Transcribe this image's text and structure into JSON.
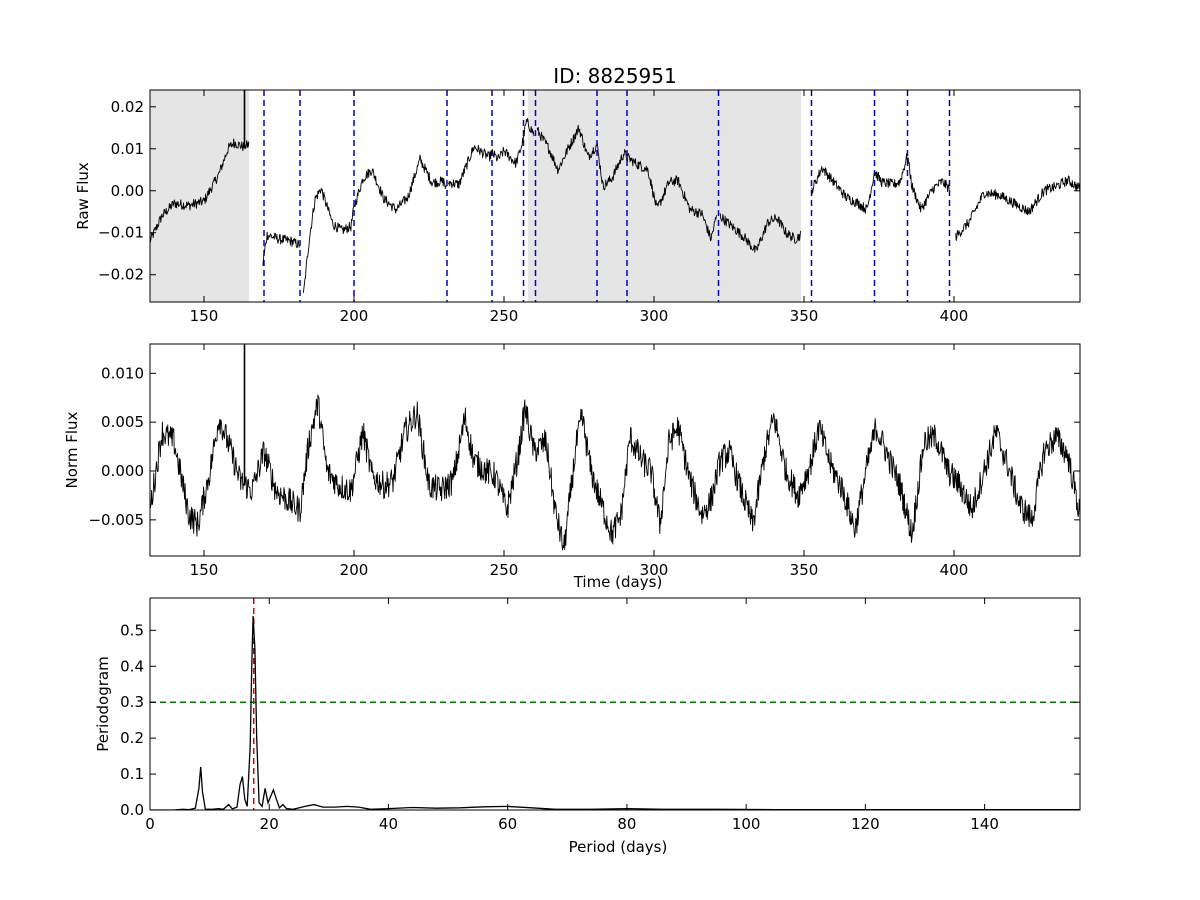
{
  "figure_title": "ID: 8825951",
  "chart_data": [
    {
      "type": "line",
      "panel": "raw",
      "ylabel": "Raw Flux",
      "xlabel": "",
      "xlim": [
        132,
        442
      ],
      "ylim": [
        -0.0265,
        0.024
      ],
      "xticks": [
        150,
        200,
        250,
        300,
        350,
        400
      ],
      "yticks": [
        -0.02,
        -0.01,
        0.0,
        0.01,
        0.02
      ],
      "ytick_labels": [
        "−0.02",
        "−0.01",
        "0.00",
        "0.01",
        "0.02"
      ],
      "shaded_spans": [
        [
          132,
          165
        ],
        [
          258,
          349
        ]
      ],
      "vlines": {
        "color": "#0000cc",
        "style": "dashed",
        "x": [
          170,
          182,
          200,
          231,
          246,
          256.5,
          260.5,
          281,
          291,
          321.5,
          352.5,
          373.5,
          384.5,
          398.5
        ]
      },
      "spike": {
        "x": 163.5,
        "y_from": 0.0115,
        "y_to": 0.024
      },
      "series": [
        {
          "points": [
            [
              132,
              -0.012
            ],
            [
              136,
              -0.006
            ],
            [
              140,
              -0.003
            ],
            [
              145,
              -0.0035
            ],
            [
              150,
              -0.0025
            ],
            [
              155,
              0.004
            ],
            [
              158,
              0.01
            ],
            [
              160,
              0.0115
            ],
            [
              163,
              0.0105
            ],
            [
              165,
              0.011
            ],
            [
              169.5,
              -0.018
            ],
            [
              171,
              -0.0105
            ],
            [
              175,
              -0.0115
            ],
            [
              179,
              -0.012
            ],
            [
              182,
              -0.013
            ],
            [
              183,
              -0.026
            ],
            [
              185,
              -0.012
            ],
            [
              187,
              -0.002
            ],
            [
              189,
              0.0005
            ],
            [
              193,
              -0.008
            ],
            [
              196,
              -0.0095
            ],
            [
              199,
              -0.0085
            ],
            [
              200,
              -0.004
            ],
            [
              203,
              0.003
            ],
            [
              206,
              0.005
            ],
            [
              210,
              -0.002
            ],
            [
              214,
              -0.0045
            ],
            [
              218,
              -0.0015
            ],
            [
              222,
              0.0075
            ],
            [
              226,
              0.002
            ],
            [
              230,
              0.0022
            ],
            [
              231,
              -0.0005
            ],
            [
              231.5,
              0.002
            ],
            [
              235,
              0.0015
            ],
            [
              240,
              0.0105
            ],
            [
              245,
              0.008
            ],
            [
              246,
              0.009
            ],
            [
              248,
              0.0075
            ],
            [
              250,
              0.0095
            ],
            [
              254,
              0.0065
            ],
            [
              256,
              0.011
            ],
            [
              257.5,
              0.0165
            ],
            [
              260,
              0.0135
            ],
            [
              261,
              0.0145
            ],
            [
              265,
              0.01
            ],
            [
              268,
              0.005
            ],
            [
              271,
              0.0095
            ],
            [
              275,
              0.015
            ],
            [
              278,
              0.008
            ],
            [
              281,
              0.011
            ],
            [
              283,
              0.001
            ],
            [
              286,
              0.003
            ],
            [
              290,
              0.009
            ],
            [
              291,
              0.008
            ],
            [
              294,
              0.0065
            ],
            [
              298,
              0.005
            ],
            [
              301,
              -0.0045
            ],
            [
              305,
              0.002
            ],
            [
              308,
              0.0025
            ],
            [
              312,
              -0.0045
            ],
            [
              316,
              -0.0055
            ],
            [
              319,
              -0.0115
            ],
            [
              321,
              -0.0055
            ],
            [
              322,
              -0.006
            ],
            [
              326,
              -0.0085
            ],
            [
              330,
              -0.011
            ],
            [
              334,
              -0.0145
            ],
            [
              338,
              -0.0075
            ],
            [
              341,
              -0.0065
            ],
            [
              344,
              -0.01
            ],
            [
              347,
              -0.0115
            ],
            [
              349,
              -0.0105
            ],
            [
              352.5,
              0.0
            ],
            [
              356,
              0.0055
            ],
            [
              360,
              0.002
            ],
            [
              364,
              -0.0015
            ],
            [
              368,
              -0.003
            ],
            [
              371,
              -0.0045
            ],
            [
              373.5,
              0.0045
            ],
            [
              376,
              0.002
            ],
            [
              380,
              0.0015
            ],
            [
              382,
              0.0022
            ],
            [
              384.5,
              0.0085
            ],
            [
              386,
              0.001
            ],
            [
              389,
              -0.0045
            ],
            [
              393,
              0.0005
            ],
            [
              396,
              0.0022
            ],
            [
              398.5,
              0.0005
            ],
            [
              400.5,
              -0.011
            ],
            [
              405,
              -0.0075
            ],
            [
              410,
              -0.0005
            ],
            [
              415,
              -0.001
            ],
            [
              420,
              -0.003
            ],
            [
              425,
              -0.005
            ],
            [
              430,
              0.0
            ],
            [
              434,
              0.001
            ],
            [
              438,
              0.0025
            ],
            [
              442,
              0.0005
            ]
          ],
          "gaps_after_x": [
            165,
            182,
            231,
            260,
            321,
            349,
            398.5
          ]
        }
      ]
    },
    {
      "type": "line",
      "panel": "norm",
      "ylabel": "Norm Flux",
      "xlabel": "Time (days)",
      "xlim": [
        132,
        442
      ],
      "ylim": [
        -0.0087,
        0.013
      ],
      "xticks": [
        150,
        200,
        250,
        300,
        350,
        400
      ],
      "yticks": [
        -0.005,
        0.0,
        0.005,
        0.01
      ],
      "ytick_labels": [
        "−0.005",
        "0.000",
        "0.005",
        "0.010"
      ],
      "spike": {
        "x": 163.5,
        "y_from": -0.0015,
        "y_to": 0.013
      },
      "series": [
        {
          "points": [
            [
              132,
              -0.004
            ],
            [
              136,
              0.004
            ],
            [
              140,
              0.003
            ],
            [
              145,
              -0.0045
            ],
            [
              148,
              -0.0055
            ],
            [
              152,
              0.0
            ],
            [
              155,
              0.0055
            ],
            [
              159,
              0.002
            ],
            [
              162,
              -0.001
            ],
            [
              166,
              -0.002
            ],
            [
              170,
              0.002
            ],
            [
              174,
              -0.002
            ],
            [
              178,
              -0.003
            ],
            [
              182,
              -0.004
            ],
            [
              185,
              0.003
            ],
            [
              188,
              0.007
            ],
            [
              191,
              0.0
            ],
            [
              195,
              -0.0015
            ],
            [
              199,
              -0.002
            ],
            [
              203,
              0.004
            ],
            [
              206,
              -0.0005
            ],
            [
              210,
              -0.0015
            ],
            [
              213,
              -0.001
            ],
            [
              217,
              0.004
            ],
            [
              221,
              0.006
            ],
            [
              225,
              -0.0015
            ],
            [
              229,
              -0.002
            ],
            [
              233,
              -0.001
            ],
            [
              237,
              0.0055
            ],
            [
              240,
              0.001
            ],
            [
              244,
              0.0
            ],
            [
              247,
              -0.0005
            ],
            [
              251,
              -0.004
            ],
            [
              255,
              0.002
            ],
            [
              257,
              0.0065
            ],
            [
              260,
              0.002
            ],
            [
              264,
              0.003
            ],
            [
              267,
              -0.004
            ],
            [
              270,
              -0.008
            ],
            [
              274,
              0.0025
            ],
            [
              276,
              0.0055
            ],
            [
              279,
              0.0
            ],
            [
              282,
              -0.003
            ],
            [
              286,
              -0.0065
            ],
            [
              289,
              -0.0045
            ],
            [
              292,
              0.0035
            ],
            [
              296,
              0.001
            ],
            [
              299,
              0.0
            ],
            [
              302,
              -0.0055
            ],
            [
              305,
              0.003
            ],
            [
              308,
              0.0045
            ],
            [
              312,
              -0.001
            ],
            [
              316,
              -0.0045
            ],
            [
              319,
              -0.003
            ],
            [
              322,
              0.001
            ],
            [
              325,
              0.002
            ],
            [
              329,
              -0.002
            ],
            [
              333,
              -0.0055
            ],
            [
              337,
              0.002
            ],
            [
              340,
              0.0055
            ],
            [
              344,
              0.0
            ],
            [
              348,
              -0.0025
            ],
            [
              352,
              0.0005
            ],
            [
              355,
              0.0045
            ],
            [
              359,
              0.0005
            ],
            [
              363,
              -0.002
            ],
            [
              367,
              -0.006
            ],
            [
              371,
              0.0005
            ],
            [
              374,
              0.0045
            ],
            [
              378,
              0.0015
            ],
            [
              382,
              -0.0015
            ],
            [
              386,
              -0.0065
            ],
            [
              390,
              0.003
            ],
            [
              394,
              0.0035
            ],
            [
              398,
              0.0
            ],
            [
              402,
              -0.0015
            ],
            [
              406,
              -0.004
            ],
            [
              410,
              0.0
            ],
            [
              414,
              0.004
            ],
            [
              418,
              0.0005
            ],
            [
              422,
              -0.0035
            ],
            [
              426,
              -0.005
            ],
            [
              430,
              0.002
            ],
            [
              434,
              0.0035
            ],
            [
              438,
              0.0015
            ],
            [
              442,
              -0.0045
            ]
          ]
        }
      ]
    },
    {
      "type": "line",
      "panel": "periodogram",
      "ylabel": "Periodogram",
      "xlabel": "Period (days)",
      "xlim": [
        0,
        156
      ],
      "ylim": [
        0,
        0.59
      ],
      "xticks": [
        0,
        20,
        40,
        60,
        80,
        100,
        120,
        140
      ],
      "yticks": [
        0.0,
        0.1,
        0.2,
        0.3,
        0.4,
        0.5
      ],
      "ytick_labels": [
        "0.0",
        "0.1",
        "0.2",
        "0.3",
        "0.4",
        "0.5"
      ],
      "hline": {
        "y": 0.3,
        "color": "#007700",
        "style": "dashed"
      },
      "vline": {
        "x": 17.4,
        "color": "#dd0000",
        "style": "dashed"
      },
      "series": [
        {
          "points": [
            [
              0,
              0
            ],
            [
              4,
              0
            ],
            [
              5.5,
              0.002
            ],
            [
              6.5,
              0.001
            ],
            [
              7.6,
              0.005
            ],
            [
              8.2,
              0.06
            ],
            [
              8.5,
              0.12
            ],
            [
              8.8,
              0.05
            ],
            [
              9.3,
              0.002
            ],
            [
              10.5,
              0.002
            ],
            [
              11.5,
              0.004
            ],
            [
              12.3,
              0.002
            ],
            [
              13.2,
              0.015
            ],
            [
              13.8,
              0.003
            ],
            [
              14.6,
              0.008
            ],
            [
              15.1,
              0.07
            ],
            [
              15.5,
              0.093
            ],
            [
              15.9,
              0.03
            ],
            [
              16.3,
              0.01
            ],
            [
              16.8,
              0.18
            ],
            [
              17.1,
              0.42
            ],
            [
              17.3,
              0.54
            ],
            [
              17.6,
              0.45
            ],
            [
              17.9,
              0.2
            ],
            [
              18.3,
              0.02
            ],
            [
              18.8,
              0.01
            ],
            [
              19.3,
              0.06
            ],
            [
              19.8,
              0.02
            ],
            [
              20.3,
              0.04
            ],
            [
              20.7,
              0.056
            ],
            [
              21.2,
              0.03
            ],
            [
              21.7,
              0.006
            ],
            [
              22.3,
              0.015
            ],
            [
              22.9,
              0.004
            ],
            [
              24,
              0.002
            ],
            [
              26,
              0.01
            ],
            [
              27.5,
              0.015
            ],
            [
              29,
              0.008
            ],
            [
              31,
              0.008
            ],
            [
              33,
              0.01
            ],
            [
              35,
              0.008
            ],
            [
              37,
              0.002
            ],
            [
              40,
              0.004
            ],
            [
              44,
              0.007
            ],
            [
              48,
              0.005
            ],
            [
              52,
              0.006
            ],
            [
              56,
              0.009
            ],
            [
              60,
              0.01
            ],
            [
              64,
              0.006
            ],
            [
              68,
              0.002
            ],
            [
              74,
              0.002
            ],
            [
              80,
              0.004
            ],
            [
              86,
              0.002
            ],
            [
              95,
              0.002
            ],
            [
              105,
              0.001
            ],
            [
              120,
              0.001
            ],
            [
              140,
              0.001
            ],
            [
              156,
              0.001
            ]
          ]
        }
      ]
    }
  ]
}
